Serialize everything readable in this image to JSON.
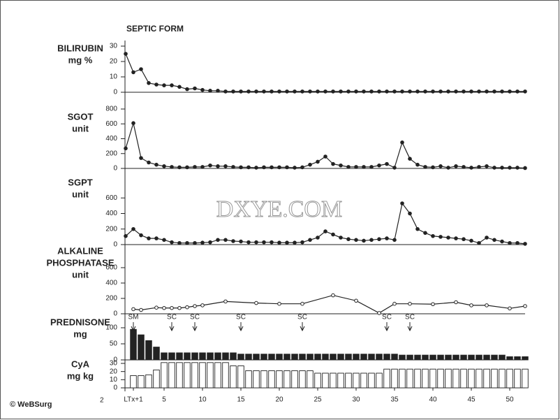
{
  "title": "SEPTIC FORM",
  "figure_label": "2",
  "copyright": "© WeBSurg",
  "watermark": "DXYE.COM",
  "chart_data": [
    {
      "type": "line",
      "ylabel": [
        "BILIRUBIN",
        "mg %"
      ],
      "ylim": [
        0,
        30
      ],
      "yticks": [
        0,
        10,
        20,
        30
      ],
      "xlim": [
        0,
        52
      ],
      "color": "#222",
      "marker": "filled",
      "x": [
        0,
        1,
        2,
        3,
        4,
        5,
        6,
        7,
        8,
        9,
        10,
        11,
        12,
        13,
        14,
        15,
        16,
        17,
        18,
        19,
        20,
        21,
        22,
        23,
        24,
        25,
        26,
        27,
        28,
        29,
        30,
        31,
        32,
        33,
        34,
        35,
        36,
        37,
        38,
        39,
        40,
        41,
        42,
        43,
        44,
        45,
        46,
        47,
        48,
        49,
        50,
        51,
        52
      ],
      "values": [
        25,
        13,
        15,
        6,
        5,
        4.5,
        4.5,
        3.5,
        2,
        2.5,
        1.5,
        1,
        1,
        0.5,
        0.5,
        0.5,
        0.5,
        0.5,
        0.5,
        0.5,
        0.5,
        0.5,
        0.5,
        0.5,
        0.5,
        0.5,
        0.5,
        0.5,
        0.5,
        0.5,
        0.5,
        0.5,
        0.5,
        0.5,
        0.5,
        0.5,
        0.5,
        0.5,
        0.5,
        0.5,
        0.5,
        0.5,
        0.5,
        0.5,
        0.5,
        0.5,
        0.5,
        0.5,
        0.5,
        0.5,
        0.5,
        0.5,
        0.5
      ]
    },
    {
      "type": "line",
      "ylabel": [
        "SGOT",
        "unit"
      ],
      "ylim": [
        0,
        800
      ],
      "yticks": [
        0,
        200,
        400,
        600,
        800
      ],
      "xlim": [
        0,
        52
      ],
      "color": "#222",
      "marker": "filled",
      "x": [
        0,
        1,
        2,
        3,
        4,
        5,
        6,
        7,
        8,
        9,
        10,
        11,
        12,
        13,
        14,
        15,
        16,
        17,
        18,
        19,
        20,
        21,
        22,
        23,
        24,
        25,
        26,
        27,
        28,
        29,
        30,
        31,
        32,
        33,
        34,
        35,
        36,
        37,
        38,
        39,
        40,
        41,
        42,
        43,
        44,
        45,
        46,
        47,
        48,
        49,
        50,
        51,
        52
      ],
      "values": [
        270,
        610,
        140,
        80,
        50,
        30,
        20,
        15,
        15,
        20,
        20,
        40,
        30,
        30,
        20,
        15,
        15,
        10,
        15,
        15,
        15,
        15,
        10,
        15,
        50,
        90,
        160,
        60,
        40,
        20,
        20,
        20,
        20,
        40,
        60,
        10,
        350,
        130,
        50,
        20,
        15,
        30,
        10,
        30,
        20,
        10,
        20,
        30,
        10,
        10,
        10,
        10,
        5
      ]
    },
    {
      "type": "line",
      "ylabel": [
        "SGPT",
        "unit"
      ],
      "ylim": [
        0,
        800
      ],
      "yticks": [
        0,
        200,
        400,
        600
      ],
      "xlim": [
        0,
        52
      ],
      "color": "#222",
      "marker": "filled",
      "x": [
        0,
        1,
        2,
        3,
        4,
        5,
        6,
        7,
        8,
        9,
        10,
        11,
        12,
        13,
        14,
        15,
        16,
        17,
        18,
        19,
        20,
        21,
        22,
        23,
        24,
        25,
        26,
        27,
        28,
        29,
        30,
        31,
        32,
        33,
        34,
        35,
        36,
        37,
        38,
        39,
        40,
        41,
        42,
        43,
        44,
        45,
        46,
        47,
        48,
        49,
        50,
        51,
        52
      ],
      "values": [
        110,
        200,
        120,
        80,
        80,
        60,
        30,
        20,
        20,
        20,
        25,
        30,
        60,
        60,
        45,
        40,
        30,
        30,
        30,
        30,
        25,
        25,
        25,
        30,
        60,
        90,
        170,
        130,
        90,
        70,
        60,
        50,
        60,
        70,
        80,
        60,
        530,
        400,
        200,
        150,
        110,
        100,
        90,
        80,
        70,
        50,
        20,
        90,
        60,
        40,
        20,
        20,
        10
      ]
    },
    {
      "type": "line",
      "ylabel": [
        "ALKALINE",
        "PHOSPHATASE",
        "unit"
      ],
      "ylim": [
        0,
        600
      ],
      "yticks": [
        0,
        200,
        400,
        600
      ],
      "xlim": [
        0,
        52
      ],
      "color": "#222",
      "marker": "open",
      "x": [
        1,
        2,
        4,
        5,
        6,
        7,
        8,
        9,
        10,
        13,
        17,
        20,
        23,
        27,
        30,
        33,
        35,
        37,
        40,
        43,
        45,
        47,
        50,
        52
      ],
      "values": [
        60,
        50,
        80,
        75,
        75,
        75,
        85,
        100,
        110,
        160,
        140,
        130,
        130,
        240,
        170,
        10,
        130,
        130,
        125,
        150,
        110,
        110,
        70,
        100
      ]
    },
    {
      "type": "bar",
      "ylabel": [
        "PREDNISONE",
        "mg"
      ],
      "ylim": [
        0,
        100
      ],
      "yticks": [
        0,
        50,
        100
      ],
      "xlim": [
        0,
        52
      ],
      "color": "#222",
      "fill": "solid",
      "annotations": [
        {
          "x": 1,
          "label": "SM"
        },
        {
          "x": 6,
          "label": "SC"
        },
        {
          "x": 9,
          "label": "SC"
        },
        {
          "x": 15,
          "label": "SC"
        },
        {
          "x": 23,
          "label": "SC"
        },
        {
          "x": 34,
          "label": "SC"
        },
        {
          "x": 37,
          "label": "SC"
        }
      ],
      "x": [
        1,
        2,
        3,
        4,
        5,
        6,
        7,
        8,
        9,
        10,
        11,
        12,
        13,
        14,
        15,
        16,
        17,
        18,
        19,
        20,
        21,
        22,
        23,
        24,
        25,
        26,
        27,
        28,
        29,
        30,
        31,
        32,
        33,
        34,
        35,
        36,
        37,
        38,
        39,
        40,
        41,
        42,
        43,
        44,
        45,
        46,
        47,
        48,
        49,
        50,
        51,
        52
      ],
      "values": [
        95,
        78,
        60,
        40,
        22,
        22,
        22,
        22,
        22,
        22,
        22,
        22,
        22,
        22,
        18,
        18,
        18,
        18,
        18,
        18,
        18,
        18,
        18,
        18,
        18,
        18,
        18,
        18,
        18,
        18,
        18,
        18,
        18,
        18,
        18,
        15,
        15,
        15,
        15,
        15,
        15,
        15,
        15,
        15,
        15,
        15,
        15,
        15,
        15,
        10,
        10,
        10
      ]
    },
    {
      "type": "bar",
      "ylabel": [
        "CyA",
        "mg kg"
      ],
      "ylim": [
        0,
        30
      ],
      "yticks": [
        0,
        10,
        20,
        30
      ],
      "xlim": [
        0,
        52
      ],
      "color": "#222",
      "fill": "open",
      "xticks": [
        {
          "value": 1,
          "label": "LTx+1"
        },
        5,
        10,
        15,
        20,
        25,
        30,
        35,
        40,
        45,
        50
      ],
      "x": [
        1,
        2,
        3,
        4,
        5,
        6,
        7,
        8,
        9,
        10,
        11,
        12,
        13,
        14,
        15,
        16,
        17,
        18,
        19,
        20,
        21,
        22,
        23,
        24,
        25,
        26,
        27,
        28,
        29,
        30,
        31,
        32,
        33,
        34,
        35,
        36,
        37,
        38,
        39,
        40,
        41,
        42,
        43,
        44,
        45,
        46,
        47,
        48,
        49,
        50,
        51,
        52
      ],
      "values": [
        15,
        15,
        16,
        22,
        31,
        31,
        31,
        31,
        31,
        31,
        31,
        31,
        31,
        27,
        27,
        21,
        21,
        21,
        21,
        21,
        21,
        21,
        21,
        21,
        18,
        18,
        18,
        18,
        18,
        18,
        18,
        18,
        18,
        23,
        23,
        23,
        23,
        23,
        23,
        23,
        23,
        23,
        23,
        23,
        23,
        23,
        23,
        23,
        23,
        23,
        23,
        23
      ]
    }
  ]
}
